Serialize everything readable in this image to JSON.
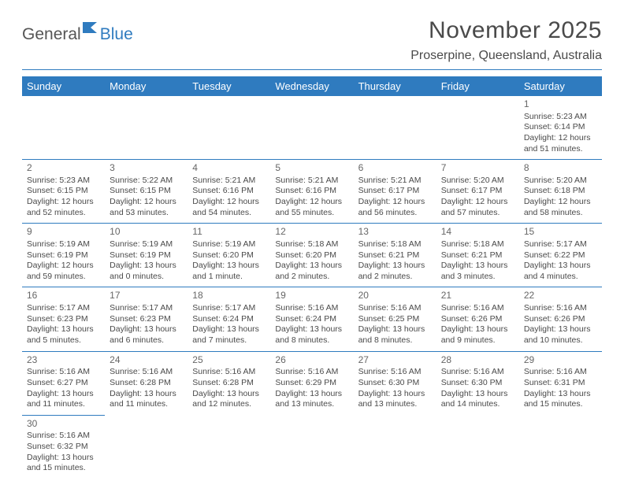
{
  "logo": {
    "text1": "General",
    "text2": "Blue"
  },
  "title": "November 2025",
  "location": "Proserpine, Queensland, Australia",
  "colors": {
    "header_bg": "#2f7bbf",
    "header_text": "#ffffff",
    "cell_border": "#2f7bbf",
    "text": "#4a4a4a",
    "logo_gray": "#555555",
    "logo_blue": "#2f7bbf"
  },
  "weekdays": [
    "Sunday",
    "Monday",
    "Tuesday",
    "Wednesday",
    "Thursday",
    "Friday",
    "Saturday"
  ],
  "weeks": [
    [
      null,
      null,
      null,
      null,
      null,
      null,
      {
        "n": "1",
        "sr": "Sunrise: 5:23 AM",
        "ss": "Sunset: 6:14 PM",
        "dl1": "Daylight: 12 hours",
        "dl2": "and 51 minutes."
      }
    ],
    [
      {
        "n": "2",
        "sr": "Sunrise: 5:23 AM",
        "ss": "Sunset: 6:15 PM",
        "dl1": "Daylight: 12 hours",
        "dl2": "and 52 minutes."
      },
      {
        "n": "3",
        "sr": "Sunrise: 5:22 AM",
        "ss": "Sunset: 6:15 PM",
        "dl1": "Daylight: 12 hours",
        "dl2": "and 53 minutes."
      },
      {
        "n": "4",
        "sr": "Sunrise: 5:21 AM",
        "ss": "Sunset: 6:16 PM",
        "dl1": "Daylight: 12 hours",
        "dl2": "and 54 minutes."
      },
      {
        "n": "5",
        "sr": "Sunrise: 5:21 AM",
        "ss": "Sunset: 6:16 PM",
        "dl1": "Daylight: 12 hours",
        "dl2": "and 55 minutes."
      },
      {
        "n": "6",
        "sr": "Sunrise: 5:21 AM",
        "ss": "Sunset: 6:17 PM",
        "dl1": "Daylight: 12 hours",
        "dl2": "and 56 minutes."
      },
      {
        "n": "7",
        "sr": "Sunrise: 5:20 AM",
        "ss": "Sunset: 6:17 PM",
        "dl1": "Daylight: 12 hours",
        "dl2": "and 57 minutes."
      },
      {
        "n": "8",
        "sr": "Sunrise: 5:20 AM",
        "ss": "Sunset: 6:18 PM",
        "dl1": "Daylight: 12 hours",
        "dl2": "and 58 minutes."
      }
    ],
    [
      {
        "n": "9",
        "sr": "Sunrise: 5:19 AM",
        "ss": "Sunset: 6:19 PM",
        "dl1": "Daylight: 12 hours",
        "dl2": "and 59 minutes."
      },
      {
        "n": "10",
        "sr": "Sunrise: 5:19 AM",
        "ss": "Sunset: 6:19 PM",
        "dl1": "Daylight: 13 hours",
        "dl2": "and 0 minutes."
      },
      {
        "n": "11",
        "sr": "Sunrise: 5:19 AM",
        "ss": "Sunset: 6:20 PM",
        "dl1": "Daylight: 13 hours",
        "dl2": "and 1 minute."
      },
      {
        "n": "12",
        "sr": "Sunrise: 5:18 AM",
        "ss": "Sunset: 6:20 PM",
        "dl1": "Daylight: 13 hours",
        "dl2": "and 2 minutes."
      },
      {
        "n": "13",
        "sr": "Sunrise: 5:18 AM",
        "ss": "Sunset: 6:21 PM",
        "dl1": "Daylight: 13 hours",
        "dl2": "and 2 minutes."
      },
      {
        "n": "14",
        "sr": "Sunrise: 5:18 AM",
        "ss": "Sunset: 6:21 PM",
        "dl1": "Daylight: 13 hours",
        "dl2": "and 3 minutes."
      },
      {
        "n": "15",
        "sr": "Sunrise: 5:17 AM",
        "ss": "Sunset: 6:22 PM",
        "dl1": "Daylight: 13 hours",
        "dl2": "and 4 minutes."
      }
    ],
    [
      {
        "n": "16",
        "sr": "Sunrise: 5:17 AM",
        "ss": "Sunset: 6:23 PM",
        "dl1": "Daylight: 13 hours",
        "dl2": "and 5 minutes."
      },
      {
        "n": "17",
        "sr": "Sunrise: 5:17 AM",
        "ss": "Sunset: 6:23 PM",
        "dl1": "Daylight: 13 hours",
        "dl2": "and 6 minutes."
      },
      {
        "n": "18",
        "sr": "Sunrise: 5:17 AM",
        "ss": "Sunset: 6:24 PM",
        "dl1": "Daylight: 13 hours",
        "dl2": "and 7 minutes."
      },
      {
        "n": "19",
        "sr": "Sunrise: 5:16 AM",
        "ss": "Sunset: 6:24 PM",
        "dl1": "Daylight: 13 hours",
        "dl2": "and 8 minutes."
      },
      {
        "n": "20",
        "sr": "Sunrise: 5:16 AM",
        "ss": "Sunset: 6:25 PM",
        "dl1": "Daylight: 13 hours",
        "dl2": "and 8 minutes."
      },
      {
        "n": "21",
        "sr": "Sunrise: 5:16 AM",
        "ss": "Sunset: 6:26 PM",
        "dl1": "Daylight: 13 hours",
        "dl2": "and 9 minutes."
      },
      {
        "n": "22",
        "sr": "Sunrise: 5:16 AM",
        "ss": "Sunset: 6:26 PM",
        "dl1": "Daylight: 13 hours",
        "dl2": "and 10 minutes."
      }
    ],
    [
      {
        "n": "23",
        "sr": "Sunrise: 5:16 AM",
        "ss": "Sunset: 6:27 PM",
        "dl1": "Daylight: 13 hours",
        "dl2": "and 11 minutes."
      },
      {
        "n": "24",
        "sr": "Sunrise: 5:16 AM",
        "ss": "Sunset: 6:28 PM",
        "dl1": "Daylight: 13 hours",
        "dl2": "and 11 minutes."
      },
      {
        "n": "25",
        "sr": "Sunrise: 5:16 AM",
        "ss": "Sunset: 6:28 PM",
        "dl1": "Daylight: 13 hours",
        "dl2": "and 12 minutes."
      },
      {
        "n": "26",
        "sr": "Sunrise: 5:16 AM",
        "ss": "Sunset: 6:29 PM",
        "dl1": "Daylight: 13 hours",
        "dl2": "and 13 minutes."
      },
      {
        "n": "27",
        "sr": "Sunrise: 5:16 AM",
        "ss": "Sunset: 6:30 PM",
        "dl1": "Daylight: 13 hours",
        "dl2": "and 13 minutes."
      },
      {
        "n": "28",
        "sr": "Sunrise: 5:16 AM",
        "ss": "Sunset: 6:30 PM",
        "dl1": "Daylight: 13 hours",
        "dl2": "and 14 minutes."
      },
      {
        "n": "29",
        "sr": "Sunrise: 5:16 AM",
        "ss": "Sunset: 6:31 PM",
        "dl1": "Daylight: 13 hours",
        "dl2": "and 15 minutes."
      }
    ],
    [
      {
        "n": "30",
        "sr": "Sunrise: 5:16 AM",
        "ss": "Sunset: 6:32 PM",
        "dl1": "Daylight: 13 hours",
        "dl2": "and 15 minutes."
      },
      null,
      null,
      null,
      null,
      null,
      null
    ]
  ]
}
